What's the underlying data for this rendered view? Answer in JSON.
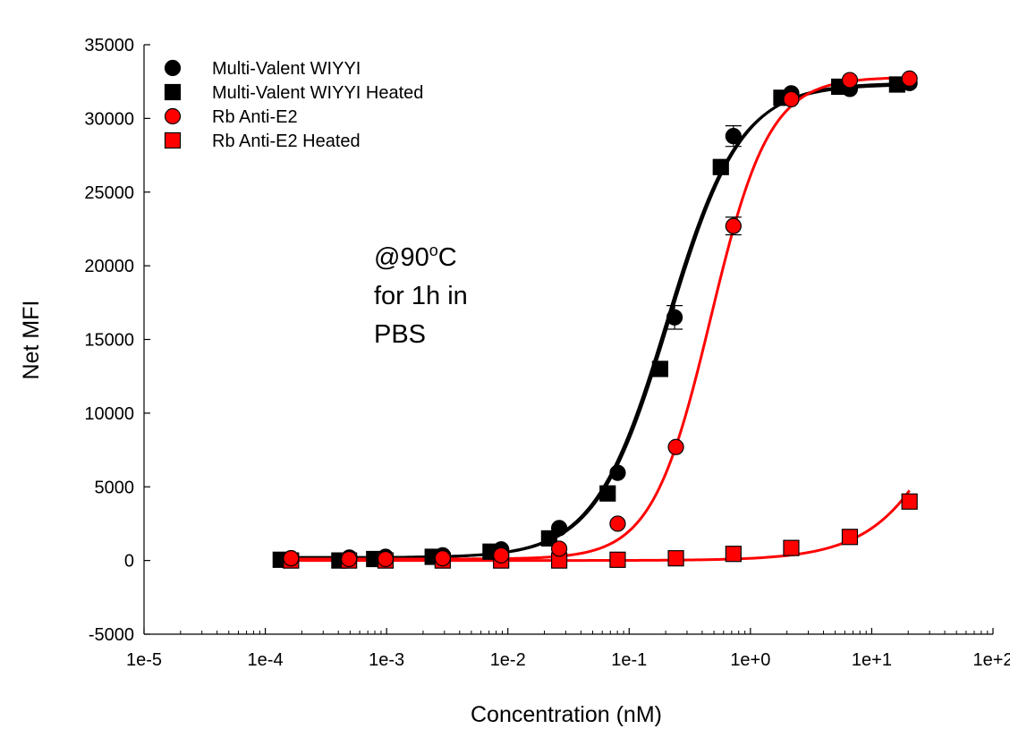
{
  "chart_data": {
    "type": "scatter",
    "title": "",
    "xlabel": "Concentration (nM)",
    "ylabel": "Net MFI",
    "x_scale": "log",
    "xlim": [
      1e-05,
      100
    ],
    "ylim": [
      -5000,
      35000
    ],
    "x_ticks": [
      {
        "value": 1e-05,
        "label": "1e-5"
      },
      {
        "value": 0.0001,
        "label": "1e-4"
      },
      {
        "value": 0.001,
        "label": "1e-3"
      },
      {
        "value": 0.01,
        "label": "1e-2"
      },
      {
        "value": 0.1,
        "label": "1e-1"
      },
      {
        "value": 1,
        "label": "1e+0"
      },
      {
        "value": 10,
        "label": "1e+1"
      },
      {
        "value": 100,
        "label": "1e+2"
      }
    ],
    "y_ticks": [
      -5000,
      0,
      5000,
      10000,
      15000,
      20000,
      25000,
      30000,
      35000
    ],
    "grid": false,
    "legend_position": "top-left",
    "annotation": {
      "lines": [
        "@90",
        "for 1h in",
        "PBS"
      ],
      "superscript": "o",
      "suffix": "C"
    },
    "series": [
      {
        "name": "Multi-Valent WIYYI",
        "marker": "circle",
        "color": "#000000",
        "curve_color": "#000000",
        "points": [
          {
            "x": 0.000163,
            "y": 150
          },
          {
            "x": 0.000493,
            "y": 200
          },
          {
            "x": 0.00098,
            "y": 250
          },
          {
            "x": 0.0029,
            "y": 350
          },
          {
            "x": 0.0088,
            "y": 750
          },
          {
            "x": 0.0265,
            "y": 2200
          },
          {
            "x": 0.0804,
            "y": 5950
          },
          {
            "x": 0.237,
            "y": 16500,
            "err": 800
          },
          {
            "x": 0.724,
            "y": 28800,
            "err": 700
          },
          {
            "x": 2.17,
            "y": 31700
          },
          {
            "x": 6.6,
            "y": 32000
          },
          {
            "x": 20.5,
            "y": 32400
          }
        ],
        "fit": {
          "bottom": 200,
          "top": 32400,
          "ec50": 0.213,
          "hill": 1.45
        }
      },
      {
        "name": "Multi-Valent WIYYI Heated",
        "marker": "square",
        "color": "#000000",
        "curve_color": "#000000",
        "points": [
          {
            "x": 0.000134,
            "y": 50
          },
          {
            "x": 0.000408,
            "y": 0
          },
          {
            "x": 0.00079,
            "y": 100
          },
          {
            "x": 0.0024,
            "y": 250
          },
          {
            "x": 0.0072,
            "y": 600
          },
          {
            "x": 0.0219,
            "y": 1500
          },
          {
            "x": 0.0665,
            "y": 4550
          },
          {
            "x": 0.18,
            "y": 13000
          },
          {
            "x": 0.57,
            "y": 26700
          },
          {
            "x": 1.8,
            "y": 31400
          },
          {
            "x": 5.4,
            "y": 32150
          },
          {
            "x": 16.2,
            "y": 32300
          }
        ],
        "fit": {
          "bottom": 200,
          "top": 32300,
          "ec50": 0.205,
          "hill": 1.45
        }
      },
      {
        "name": "Rb Anti-E2",
        "marker": "circle",
        "color": "#ff0000",
        "curve_color": "#ff0000",
        "points": [
          {
            "x": 0.000163,
            "y": 150
          },
          {
            "x": 0.00049,
            "y": 100
          },
          {
            "x": 0.00098,
            "y": 100
          },
          {
            "x": 0.0029,
            "y": 150
          },
          {
            "x": 0.0088,
            "y": 350
          },
          {
            "x": 0.0265,
            "y": 800
          },
          {
            "x": 0.0804,
            "y": 2500
          },
          {
            "x": 0.243,
            "y": 7700
          },
          {
            "x": 0.724,
            "y": 22700,
            "err": 600
          },
          {
            "x": 2.17,
            "y": 31300
          },
          {
            "x": 6.6,
            "y": 32600
          },
          {
            "x": 20.5,
            "y": 32700
          }
        ],
        "fit": {
          "bottom": 100,
          "top": 32800,
          "ec50": 0.47,
          "hill": 1.8
        }
      },
      {
        "name": "Rb Anti-E2 Heated",
        "marker": "square",
        "color": "#ff0000",
        "curve_color": "#ff0000",
        "points": [
          {
            "x": 0.000163,
            "y": 0
          },
          {
            "x": 0.00049,
            "y": 0
          },
          {
            "x": 0.00098,
            "y": 0
          },
          {
            "x": 0.0029,
            "y": 0
          },
          {
            "x": 0.0088,
            "y": 0
          },
          {
            "x": 0.0265,
            "y": 0
          },
          {
            "x": 0.0804,
            "y": 50
          },
          {
            "x": 0.243,
            "y": 150
          },
          {
            "x": 0.724,
            "y": 450
          },
          {
            "x": 2.17,
            "y": 850
          },
          {
            "x": 6.6,
            "y": 1600
          },
          {
            "x": 20.5,
            "y": 4000
          }
        ],
        "fit": {
          "bottom": 0,
          "top": 32800,
          "ec50": 90,
          "hill": 1.2,
          "x_start": 0.000163
        }
      }
    ]
  }
}
